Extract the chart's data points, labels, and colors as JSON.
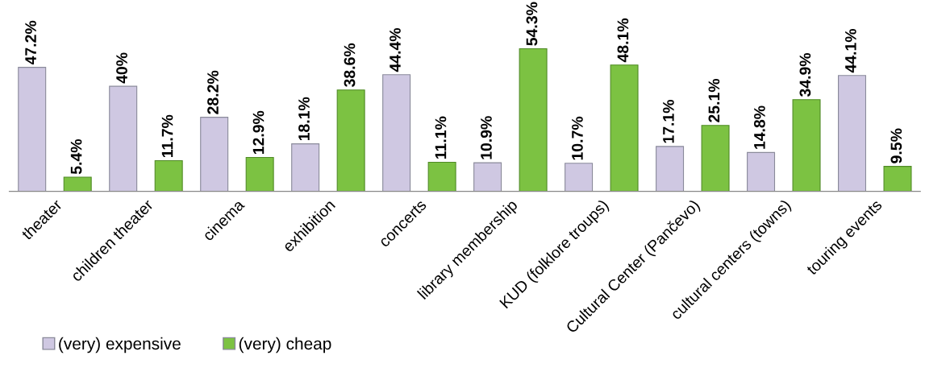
{
  "chart_data": {
    "type": "bar",
    "categories": [
      "theater",
      "children theater",
      "cinema",
      "exhibition",
      "concerts",
      "library membership",
      "KUD (folklore troups)",
      "Cultural Center (Pančevo)",
      "cultural centers (towns)",
      "touring events"
    ],
    "series": [
      {
        "name": "(very) expensive",
        "color": "#cfc8e2",
        "values": [
          47.2,
          40,
          28.2,
          18.1,
          44.4,
          10.9,
          10.7,
          17.1,
          14.8,
          44.1
        ],
        "value_labels": [
          "47.2%",
          "40%",
          "28.2%",
          "18.1%",
          "44.4%",
          "10.9%",
          "10.7%",
          "17.1%",
          "14.8%",
          "44.1%"
        ]
      },
      {
        "name": "(very) cheap",
        "color": "#7cc242",
        "values": [
          5.4,
          11.7,
          12.9,
          38.6,
          11.1,
          54.3,
          48.1,
          25.1,
          34.9,
          9.5
        ],
        "value_labels": [
          "5.4%",
          "11.7%",
          "12.9%",
          "38.6%",
          "11.1%",
          "54.3%",
          "48.1%",
          "25.1%",
          "34.9%",
          "9.5%"
        ]
      }
    ],
    "tick_labels": "x",
    "grid": false,
    "legend": "bottom left"
  }
}
